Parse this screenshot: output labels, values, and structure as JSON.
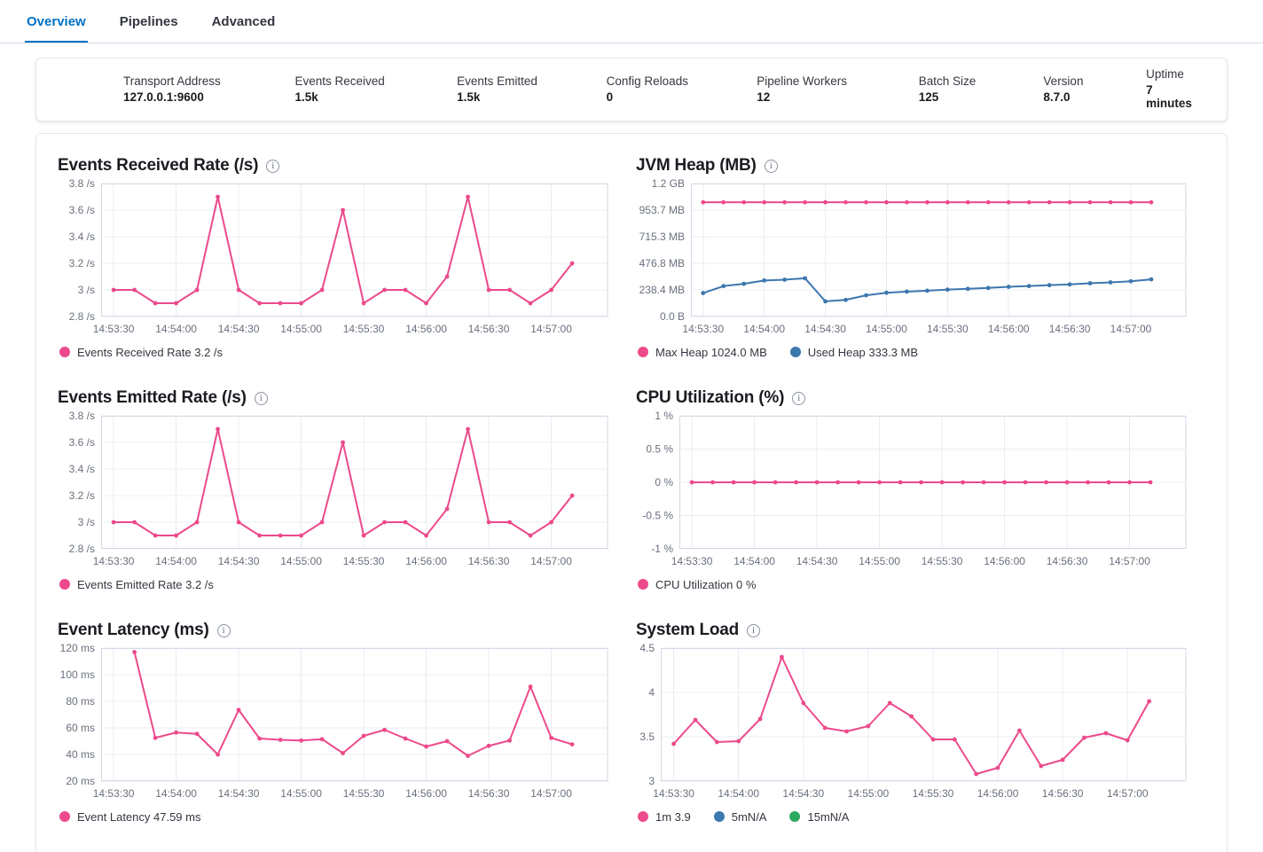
{
  "tabs": [
    {
      "id": "overview",
      "label": "Overview",
      "active": true
    },
    {
      "id": "pipelines",
      "label": "Pipelines",
      "active": false
    },
    {
      "id": "advanced",
      "label": "Advanced",
      "active": false
    }
  ],
  "stats": [
    {
      "id": "transport-address",
      "label": "Transport Address",
      "value": "127.0.0.1:9600"
    },
    {
      "id": "events-received",
      "label": "Events Received",
      "value": "1.5k"
    },
    {
      "id": "events-emitted",
      "label": "Events Emitted",
      "value": "1.5k"
    },
    {
      "id": "config-reloads",
      "label": "Config Reloads",
      "value": "0"
    },
    {
      "id": "pipeline-workers",
      "label": "Pipeline Workers",
      "value": "12"
    },
    {
      "id": "batch-size",
      "label": "Batch Size",
      "value": "125"
    },
    {
      "id": "version",
      "label": "Version",
      "value": "8.7.0"
    },
    {
      "id": "uptime",
      "label": "Uptime",
      "value": "7 minutes"
    }
  ],
  "colors": {
    "accent_pink": "#EC4A8B",
    "series_blue": "#3D77AF",
    "series_green": "#2EA85F",
    "active_tab_blue": "#0071C2",
    "grid_line": "#E8ECF1",
    "plot_border": "#D3DAE6",
    "axis_text": "#69707D"
  },
  "chart_data": [
    {
      "id": "events-received-rate",
      "type": "line",
      "title": "Events Received Rate (/s)",
      "ylim": [
        2.8,
        3.8
      ],
      "y_ticks": [
        {
          "v": 3.8,
          "label": "3.8 /s"
        },
        {
          "v": 3.6,
          "label": "3.6 /s"
        },
        {
          "v": 3.4,
          "label": "3.4 /s"
        },
        {
          "v": 3.2,
          "label": "3.2 /s"
        },
        {
          "v": 3.0,
          "label": "3 /s"
        },
        {
          "v": 2.8,
          "label": "2.8 /s"
        }
      ],
      "xlim": [
        -6,
        237
      ],
      "x_ticks": [
        {
          "t": 0,
          "label": "14:53:30"
        },
        {
          "t": 30,
          "label": "14:54:00"
        },
        {
          "t": 60,
          "label": "14:54:30"
        },
        {
          "t": 90,
          "label": "14:55:00"
        },
        {
          "t": 120,
          "label": "14:55:30"
        },
        {
          "t": 150,
          "label": "14:56:00"
        },
        {
          "t": 180,
          "label": "14:56:30"
        },
        {
          "t": 210,
          "label": "14:57:00"
        }
      ],
      "series": [
        {
          "name": "Events Received Rate",
          "color": "#EC4A8B",
          "x0": 0,
          "dx": 10,
          "values": [
            3,
            3,
            2.9,
            2.9,
            3,
            3.7,
            3,
            2.9,
            2.9,
            2.9,
            3,
            3.6,
            2.9,
            3,
            3,
            2.9,
            3.1,
            3.7,
            3,
            3,
            2.9,
            3,
            3.2
          ]
        }
      ],
      "legend": [
        {
          "color": "#EC4A8B",
          "label": "Events Received Rate 3.2 /s"
        }
      ]
    },
    {
      "id": "jvm-heap",
      "type": "line",
      "title": "JVM Heap (MB)",
      "ylim": [
        0,
        1192.1
      ],
      "y_ticks": [
        {
          "v": 1192.1,
          "label": "1.2 GB"
        },
        {
          "v": 953.7,
          "label": "953.7 MB"
        },
        {
          "v": 715.3,
          "label": "715.3 MB"
        },
        {
          "v": 476.8,
          "label": "476.8 MB"
        },
        {
          "v": 238.4,
          "label": "238.4 MB"
        },
        {
          "v": 0,
          "label": "0.0 B"
        }
      ],
      "xlim": [
        -6,
        237
      ],
      "x_ticks": [
        {
          "t": 0,
          "label": "14:53:30"
        },
        {
          "t": 30,
          "label": "14:54:00"
        },
        {
          "t": 60,
          "label": "14:54:30"
        },
        {
          "t": 90,
          "label": "14:55:00"
        },
        {
          "t": 120,
          "label": "14:55:30"
        },
        {
          "t": 150,
          "label": "14:56:00"
        },
        {
          "t": 180,
          "label": "14:56:30"
        },
        {
          "t": 210,
          "label": "14:57:00"
        }
      ],
      "series": [
        {
          "name": "Max Heap",
          "color": "#EC4A8B",
          "x0": 0,
          "dx": 10,
          "values": [
            1024,
            1024,
            1024,
            1024,
            1024,
            1024,
            1024,
            1024,
            1024,
            1024,
            1024,
            1024,
            1024,
            1024,
            1024,
            1024,
            1024,
            1024,
            1024,
            1024,
            1024,
            1024,
            1024
          ]
        },
        {
          "name": "Used Heap",
          "color": "#3D77AF",
          "x0": 0,
          "dx": 10,
          "values": [
            210,
            273,
            293,
            323,
            330,
            343,
            136,
            149,
            190,
            213,
            223,
            231,
            241,
            248,
            256,
            266,
            273,
            281,
            288,
            298,
            306,
            316,
            333
          ]
        }
      ],
      "legend": [
        {
          "color": "#EC4A8B",
          "label": "Max Heap 1024.0 MB"
        },
        {
          "color": "#3D77AF",
          "label": "Used Heap 333.3 MB"
        }
      ]
    },
    {
      "id": "events-emitted-rate",
      "type": "line",
      "title": "Events Emitted Rate (/s)",
      "ylim": [
        2.8,
        3.8
      ],
      "y_ticks": [
        {
          "v": 3.8,
          "label": "3.8 /s"
        },
        {
          "v": 3.6,
          "label": "3.6 /s"
        },
        {
          "v": 3.4,
          "label": "3.4 /s"
        },
        {
          "v": 3.2,
          "label": "3.2 /s"
        },
        {
          "v": 3.0,
          "label": "3 /s"
        },
        {
          "v": 2.8,
          "label": "2.8 /s"
        }
      ],
      "xlim": [
        -6,
        237
      ],
      "x_ticks": [
        {
          "t": 0,
          "label": "14:53:30"
        },
        {
          "t": 30,
          "label": "14:54:00"
        },
        {
          "t": 60,
          "label": "14:54:30"
        },
        {
          "t": 90,
          "label": "14:55:00"
        },
        {
          "t": 120,
          "label": "14:55:30"
        },
        {
          "t": 150,
          "label": "14:56:00"
        },
        {
          "t": 180,
          "label": "14:56:30"
        },
        {
          "t": 210,
          "label": "14:57:00"
        }
      ],
      "series": [
        {
          "name": "Events Emitted Rate",
          "color": "#EC4A8B",
          "x0": 0,
          "dx": 10,
          "values": [
            3,
            3,
            2.9,
            2.9,
            3,
            3.7,
            3,
            2.9,
            2.9,
            2.9,
            3,
            3.6,
            2.9,
            3,
            3,
            2.9,
            3.1,
            3.7,
            3,
            3,
            2.9,
            3,
            3.2
          ]
        }
      ],
      "legend": [
        {
          "color": "#EC4A8B",
          "label": "Events Emitted Rate 3.2 /s"
        }
      ]
    },
    {
      "id": "cpu-utilization",
      "type": "line",
      "title": "CPU Utilization (%)",
      "ylim": [
        -1,
        1
      ],
      "y_ticks": [
        {
          "v": 1,
          "label": "1 %"
        },
        {
          "v": 0.5,
          "label": "0.5 %"
        },
        {
          "v": 0,
          "label": "0 %"
        },
        {
          "v": -0.5,
          "label": "-0.5 %"
        },
        {
          "v": -1,
          "label": "-1 %"
        }
      ],
      "xlim": [
        -6,
        237
      ],
      "x_ticks": [
        {
          "t": 0,
          "label": "14:53:30"
        },
        {
          "t": 30,
          "label": "14:54:00"
        },
        {
          "t": 60,
          "label": "14:54:30"
        },
        {
          "t": 90,
          "label": "14:55:00"
        },
        {
          "t": 120,
          "label": "14:55:30"
        },
        {
          "t": 150,
          "label": "14:56:00"
        },
        {
          "t": 180,
          "label": "14:56:30"
        },
        {
          "t": 210,
          "label": "14:57:00"
        }
      ],
      "series": [
        {
          "name": "CPU Utilization",
          "color": "#EC4A8B",
          "x0": 0,
          "dx": 10,
          "values": [
            0,
            0,
            0,
            0,
            0,
            0,
            0,
            0,
            0,
            0,
            0,
            0,
            0,
            0,
            0,
            0,
            0,
            0,
            0,
            0,
            0,
            0,
            0
          ]
        }
      ],
      "legend": [
        {
          "color": "#EC4A8B",
          "label": "CPU Utilization 0 %"
        }
      ]
    },
    {
      "id": "event-latency",
      "type": "line",
      "title": "Event Latency (ms)",
      "ylim": [
        20,
        120
      ],
      "y_ticks": [
        {
          "v": 120,
          "label": "120 ms"
        },
        {
          "v": 100,
          "label": "100 ms"
        },
        {
          "v": 80,
          "label": "80 ms"
        },
        {
          "v": 60,
          "label": "60 ms"
        },
        {
          "v": 40,
          "label": "40 ms"
        },
        {
          "v": 20,
          "label": "20 ms"
        }
      ],
      "xlim": [
        -6,
        237
      ],
      "x_ticks": [
        {
          "t": 0,
          "label": "14:53:30"
        },
        {
          "t": 30,
          "label": "14:54:00"
        },
        {
          "t": 60,
          "label": "14:54:30"
        },
        {
          "t": 90,
          "label": "14:55:00"
        },
        {
          "t": 120,
          "label": "14:55:30"
        },
        {
          "t": 150,
          "label": "14:56:00"
        },
        {
          "t": 180,
          "label": "14:56:30"
        },
        {
          "t": 210,
          "label": "14:57:00"
        }
      ],
      "series": [
        {
          "name": "Event Latency",
          "color": "#EC4A8B",
          "x0": 10,
          "dx": 10,
          "values": [
            117,
            52.5,
            56.5,
            55.5,
            40,
            73.5,
            52,
            51,
            50.5,
            51.5,
            41,
            54,
            58.5,
            52,
            46,
            50,
            39,
            46.5,
            50.5,
            91,
            52.5,
            47.59
          ]
        }
      ],
      "legend": [
        {
          "color": "#EC4A8B",
          "label": "Event Latency 47.59 ms"
        }
      ]
    },
    {
      "id": "system-load",
      "type": "line",
      "title": "System Load",
      "ylim": [
        3,
        4.5
      ],
      "y_ticks": [
        {
          "v": 4.5,
          "label": "4.5"
        },
        {
          "v": 4,
          "label": "4"
        },
        {
          "v": 3.5,
          "label": "3.5"
        },
        {
          "v": 3,
          "label": "3"
        }
      ],
      "xlim": [
        -6,
        237
      ],
      "x_ticks": [
        {
          "t": 0,
          "label": "14:53:30"
        },
        {
          "t": 30,
          "label": "14:54:00"
        },
        {
          "t": 60,
          "label": "14:54:30"
        },
        {
          "t": 90,
          "label": "14:55:00"
        },
        {
          "t": 120,
          "label": "14:55:30"
        },
        {
          "t": 150,
          "label": "14:56:00"
        },
        {
          "t": 180,
          "label": "14:56:30"
        },
        {
          "t": 210,
          "label": "14:57:00"
        }
      ],
      "series": [
        {
          "name": "1m",
          "color": "#EC4A8B",
          "x0": 0,
          "dx": 10,
          "values": [
            3.42,
            3.69,
            3.44,
            3.45,
            3.7,
            4.4,
            3.88,
            3.6,
            3.56,
            3.62,
            3.88,
            3.73,
            3.47,
            3.47,
            3.08,
            3.15,
            3.57,
            3.17,
            3.24,
            3.49,
            3.54,
            3.46,
            3.9
          ]
        }
      ],
      "legend": [
        {
          "color": "#EC4A8B",
          "label": "1m 3.9"
        },
        {
          "color": "#3D77AF",
          "label": "5mN/A"
        },
        {
          "color": "#2EA85F",
          "label": "15mN/A"
        }
      ]
    }
  ]
}
